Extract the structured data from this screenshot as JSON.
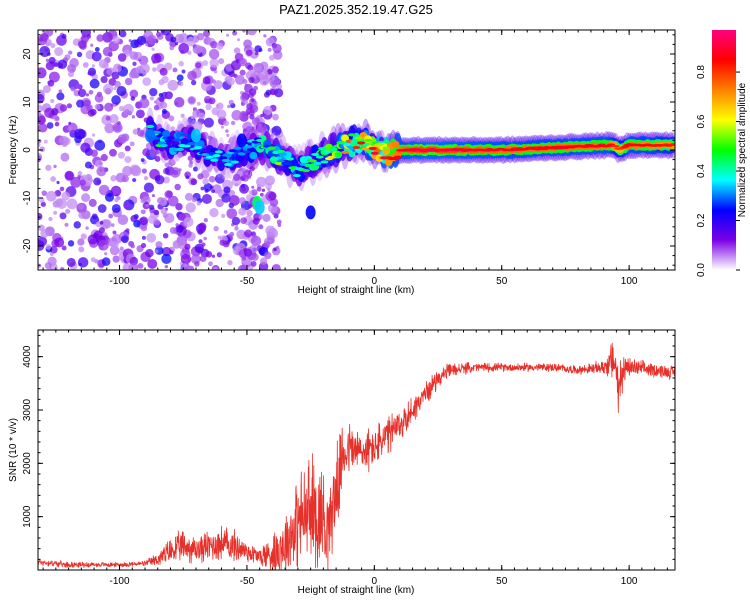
{
  "figure": {
    "title": "PAZ1.2025.352.19.47.G25"
  },
  "chart_data": [
    {
      "type": "heatmap",
      "name": "spectrogram",
      "xlabel": "Height of straight line (km)",
      "ylabel": "Frequency (Hz)",
      "xlim": [
        -132,
        118
      ],
      "ylim": [
        -25,
        25
      ],
      "xticks": [
        -100,
        -50,
        0,
        50,
        100
      ],
      "yticks": [
        20,
        10,
        0,
        -10,
        -20
      ],
      "colorbar": {
        "label": "Normalized spectral amplitude",
        "range": [
          0,
          0.97
        ],
        "ticks": [
          "0.0",
          "0.2",
          "0.4",
          "0.6",
          "0.8"
        ],
        "colormap": [
          "#ffffff",
          "#7a00e6",
          "#0000ff",
          "#00ffff",
          "#00ff00",
          "#ffff00",
          "#ff8000",
          "#ff0000",
          "#ff0080"
        ]
      },
      "ridge": {
        "x": [
          -88,
          -80,
          -72,
          -65,
          -58,
          -50,
          -45,
          -38,
          -30,
          -20,
          -12,
          -5,
          0,
          5,
          10,
          20,
          50,
          92,
          94,
          96,
          100,
          118
        ],
        "frequency": [
          4,
          1,
          2,
          -1,
          -2,
          0,
          1,
          -1,
          -4,
          -1,
          1,
          2,
          0,
          -1,
          0,
          0,
          0,
          1,
          1,
          0,
          1,
          1
        ],
        "amplitude": [
          0.4,
          0.35,
          0.3,
          0.3,
          0.3,
          0.3,
          0.4,
          0.45,
          0.35,
          0.45,
          0.6,
          0.7,
          0.8,
          0.85,
          0.9,
          0.95,
          0.9,
          0.9,
          0.85,
          0.8,
          0.9,
          0.85
        ]
      }
    },
    {
      "type": "line",
      "name": "snr",
      "xlabel": "Height of straight line (km)",
      "ylabel": "SNR (10 * v/v)",
      "xlim": [
        -132,
        118
      ],
      "ylim": [
        0,
        4500
      ],
      "xticks": [
        -100,
        -50,
        0,
        50,
        100
      ],
      "yticks": [
        1000,
        2000,
        3000,
        4000
      ],
      "color": "#e8302a",
      "series": [
        {
          "name": "SNR",
          "x": [
            -132,
            -120,
            -100,
            -90,
            -85,
            -80,
            -75,
            -70,
            -65,
            -60,
            -55,
            -50,
            -45,
            -40,
            -35,
            -30,
            -25,
            -20,
            -18,
            -15,
            -12,
            -10,
            -5,
            0,
            5,
            10,
            15,
            20,
            25,
            30,
            40,
            50,
            60,
            70,
            80,
            90,
            94,
            96,
            98,
            100,
            110,
            118
          ],
          "mean": [
            150,
            100,
            100,
            120,
            200,
            350,
            450,
            380,
            450,
            500,
            450,
            350,
            250,
            300,
            500,
            900,
            1100,
            1000,
            800,
            1500,
            2200,
            2300,
            2200,
            2300,
            2500,
            2700,
            3000,
            3300,
            3600,
            3750,
            3800,
            3800,
            3800,
            3800,
            3750,
            3800,
            3950,
            3500,
            3750,
            3800,
            3750,
            3700
          ],
          "spread": [
            80,
            60,
            50,
            60,
            150,
            300,
            350,
            300,
            350,
            400,
            350,
            250,
            200,
            500,
            700,
            1000,
            1300,
            1200,
            1000,
            900,
            700,
            600,
            500,
            450,
            450,
            400,
            300,
            250,
            200,
            150,
            100,
            90,
            90,
            90,
            90,
            150,
            500,
            700,
            300,
            200,
            150,
            150
          ]
        }
      ]
    }
  ]
}
